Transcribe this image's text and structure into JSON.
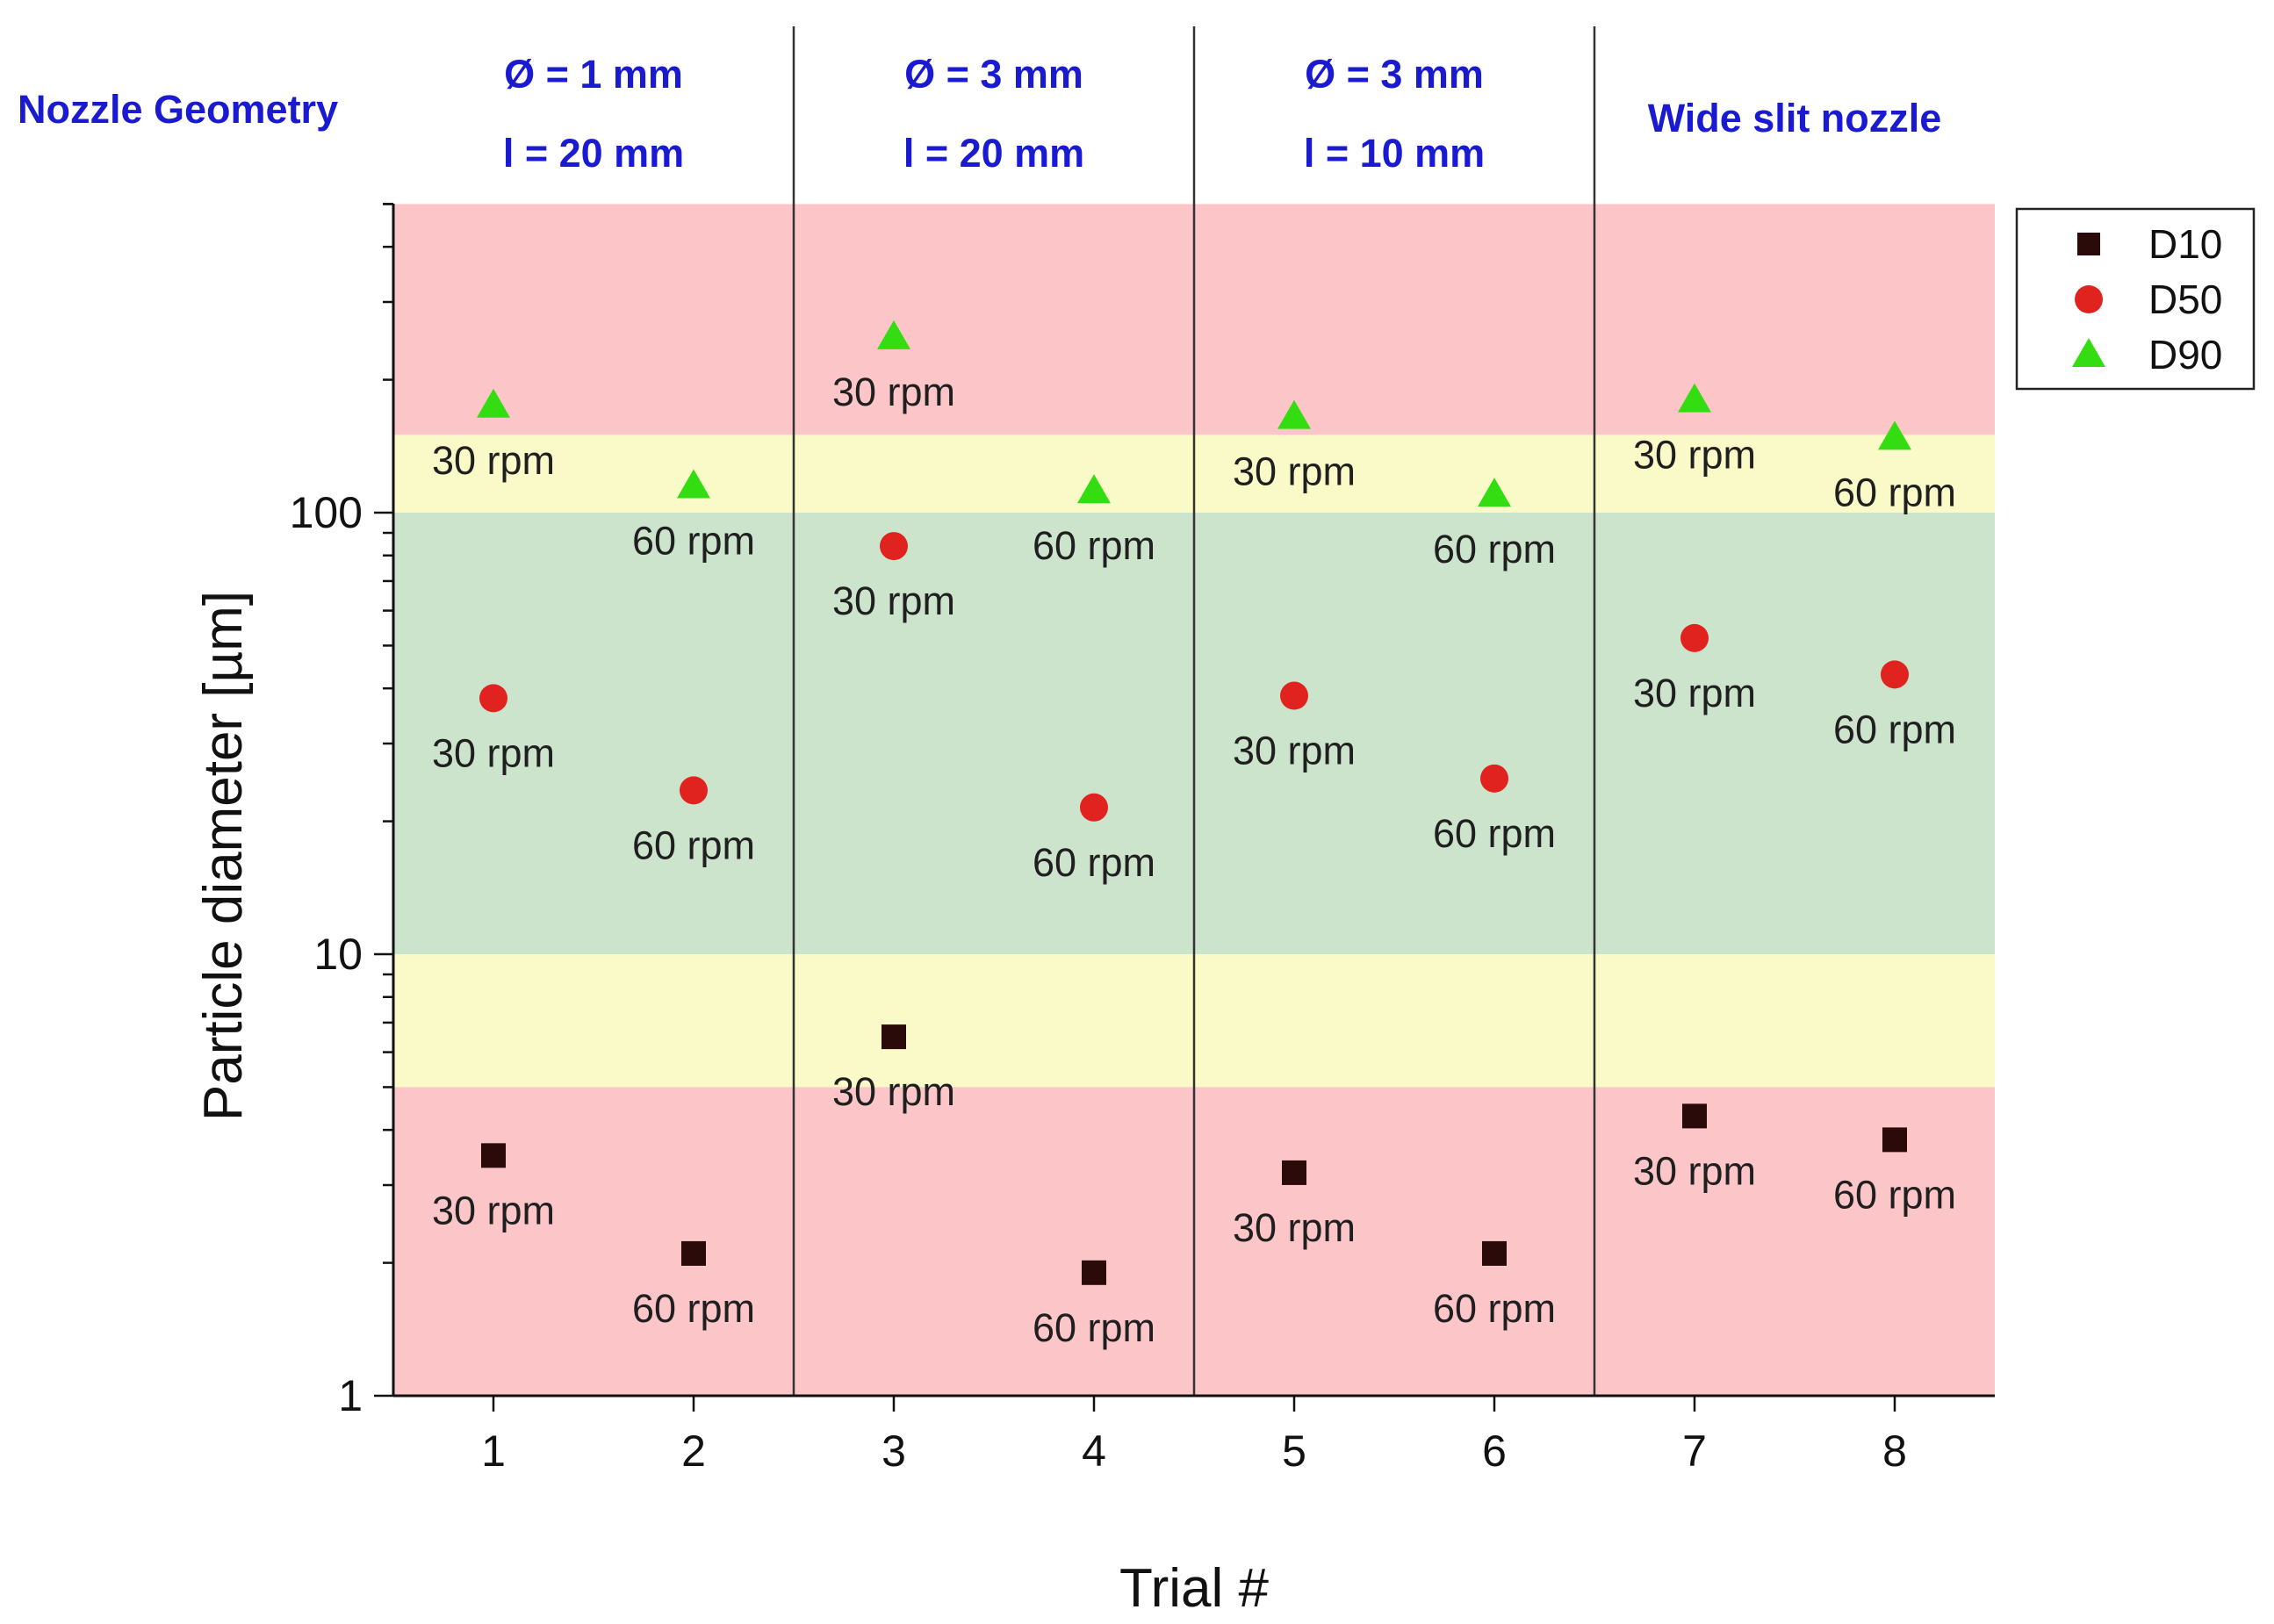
{
  "chart_data": {
    "type": "scatter",
    "title": "",
    "xlabel": "Trial #",
    "ylabel": "Particle diameter [µm]",
    "yscale": "log",
    "ylim": [
      1,
      500
    ],
    "xlim": [
      0.5,
      8.5
    ],
    "x": [
      1,
      2,
      3,
      4,
      5,
      6,
      7,
      8
    ],
    "x_tick_labels": [
      "1",
      "2",
      "3",
      "4",
      "5",
      "6",
      "7",
      "8"
    ],
    "y_tick_labels": [
      "1",
      "10",
      "100"
    ],
    "y_ticks": [
      1,
      10,
      100
    ],
    "legend_position": "top-right",
    "header_label": "Nozzle Geometry",
    "groups": [
      {
        "line1": "Ø = 1 mm",
        "line2": "l = 20 mm",
        "trials": [
          1,
          2
        ]
      },
      {
        "line1": "Ø = 3 mm",
        "line2": "l = 20 mm",
        "trials": [
          3,
          4
        ]
      },
      {
        "line1": "Ø = 3 mm",
        "line2": "l = 10 mm",
        "trials": [
          5,
          6
        ]
      },
      {
        "line1": "Wide slit nozzle",
        "line2": "",
        "trials": [
          7,
          8
        ]
      }
    ],
    "bands": [
      {
        "from": 150,
        "to": 500,
        "color": "#fcc5c8"
      },
      {
        "from": 100,
        "to": 150,
        "color": "#fafac8"
      },
      {
        "from": 10,
        "to": 100,
        "color": "#cce3cc"
      },
      {
        "from": 5,
        "to": 10,
        "color": "#fafac8"
      },
      {
        "from": 1,
        "to": 5,
        "color": "#fcc5c8"
      }
    ],
    "series": [
      {
        "name": "D10",
        "marker": "square",
        "color": "#2b0a0a",
        "values": [
          3.5,
          2.1,
          6.5,
          1.9,
          3.2,
          2.1,
          4.3,
          3.8
        ],
        "labels": [
          "30 rpm",
          "60 rpm",
          "30 rpm",
          "60 rpm",
          "30 rpm",
          "60 rpm",
          "30 rpm",
          "60 rpm"
        ]
      },
      {
        "name": "D50",
        "marker": "circle",
        "color": "#e0231f",
        "values": [
          38,
          23.5,
          84,
          21.5,
          38.5,
          25,
          52,
          43
        ],
        "labels": [
          "30 rpm",
          "60 rpm",
          "30 rpm",
          "60 rpm",
          "30 rpm",
          "60 rpm",
          "30 rpm",
          "60 rpm"
        ]
      },
      {
        "name": "D90",
        "marker": "triangle",
        "color": "#33dd11",
        "values": [
          175,
          115,
          250,
          112,
          165,
          110,
          180,
          148
        ],
        "labels": [
          "30 rpm",
          "60 rpm",
          "30 rpm",
          "60 rpm",
          "30 rpm",
          "60 rpm",
          "30 rpm",
          "60 rpm"
        ]
      }
    ]
  }
}
